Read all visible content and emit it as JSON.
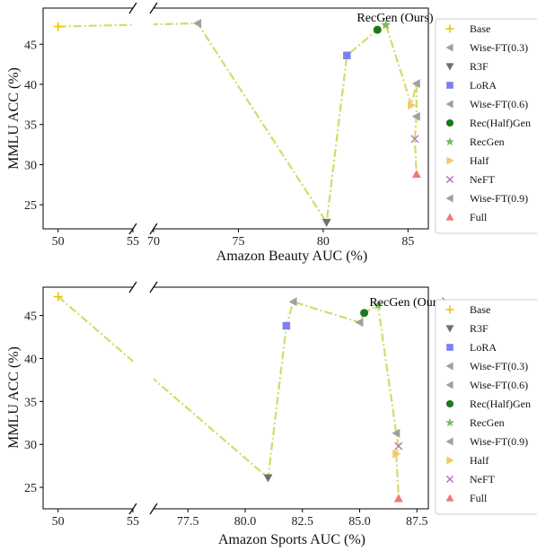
{
  "chart_data": [
    {
      "type": "line",
      "ylabel": "MMLU ACC (%)",
      "xlabel": "Amazon Beauty AUC (%)",
      "broken_x_axis": true,
      "left_xlim": [
        49,
        55
      ],
      "left_xticks": [
        "50",
        "55"
      ],
      "right_xlim": [
        70,
        86.2
      ],
      "right_xticks": [
        "70",
        "75",
        "80",
        "85"
      ],
      "ylim": [
        22,
        49.5
      ],
      "yticks": [
        "25",
        "30",
        "35",
        "40",
        "45"
      ],
      "annotation": "RecGen (Ours)",
      "line_color": "#d7d96a",
      "line_style": "dash-dot",
      "grid": false,
      "legend_position": "right",
      "series": [
        {
          "name": "Base",
          "marker": "plus",
          "color": "#f2c300",
          "x": 50.0,
          "y": 47.2
        },
        {
          "name": "Wise-FT(0.3)",
          "marker": "triangle-left",
          "color": "#a0a0a0",
          "x": 72.6,
          "y": 47.6
        },
        {
          "name": "R3F",
          "marker": "triangle-down",
          "color": "#707070",
          "x": 80.2,
          "y": 22.8
        },
        {
          "name": "LoRA",
          "marker": "square",
          "color": "#7f7fef",
          "x": 81.4,
          "y": 43.6
        },
        {
          "name": "Wise-FT(0.6)",
          "marker": "triangle-left",
          "color": "#a0a0a0",
          "x": 85.5,
          "y": 40.1
        },
        {
          "name": "Rec(Half)Gen",
          "marker": "circle",
          "color": "#1a7a1a",
          "x": 83.2,
          "y": 46.8
        },
        {
          "name": "RecGen",
          "marker": "star",
          "color": "#77bb66",
          "x": 83.7,
          "y": 47.4
        },
        {
          "name": "Half",
          "marker": "triangle-right",
          "color": "#f6c667",
          "x": 85.2,
          "y": 37.4
        },
        {
          "name": "NeFT",
          "marker": "x",
          "color": "#b070c0",
          "x": 85.4,
          "y": 33.2
        },
        {
          "name": "Wise-FT(0.9)",
          "marker": "triangle-left",
          "color": "#a0a0a0",
          "x": 85.5,
          "y": 36.0
        },
        {
          "name": "Full",
          "marker": "triangle-up",
          "color": "#f07878",
          "x": 85.5,
          "y": 28.8
        }
      ],
      "path_order": [
        "Base",
        "Wise-FT(0.3)",
        "R3F",
        "LoRA",
        "Rec(Half)Gen",
        "RecGen",
        "Half",
        "Wise-FT(0.6)",
        "Wise-FT(0.9)",
        "NeFT",
        "Full"
      ]
    },
    {
      "type": "line",
      "ylabel": "MMLU ACC (%)",
      "xlabel": "Amazon Sports AUC (%)",
      "broken_x_axis": true,
      "left_xlim": [
        49,
        55
      ],
      "left_xticks": [
        "50",
        "55"
      ],
      "right_xlim": [
        76,
        88
      ],
      "right_xticks": [
        "77.5",
        "80.0",
        "82.5",
        "85.0",
        "87.5"
      ],
      "ylim": [
        22.5,
        48.3
      ],
      "yticks": [
        "25",
        "30",
        "35",
        "40",
        "45"
      ],
      "annotation": "RecGen (Ours)",
      "line_color": "#d7d96a",
      "line_style": "dash-dot",
      "grid": false,
      "legend_position": "right",
      "series": [
        {
          "name": "Base",
          "marker": "plus",
          "color": "#f2c300",
          "x": 50.0,
          "y": 47.2
        },
        {
          "name": "R3F",
          "marker": "triangle-down",
          "color": "#707070",
          "x": 81.0,
          "y": 26.1
        },
        {
          "name": "LoRA",
          "marker": "square",
          "color": "#7f7fef",
          "x": 81.8,
          "y": 43.8
        },
        {
          "name": "Wise-FT(0.3)",
          "marker": "triangle-left",
          "color": "#a0a0a0",
          "x": 82.1,
          "y": 46.6
        },
        {
          "name": "Wise-FT(0.6)",
          "marker": "triangle-left",
          "color": "#a0a0a0",
          "x": 85.0,
          "y": 44.2
        },
        {
          "name": "Rec(Half)Gen",
          "marker": "circle",
          "color": "#1a7a1a",
          "x": 85.2,
          "y": 45.3
        },
        {
          "name": "RecGen",
          "marker": "star",
          "color": "#77bb66",
          "x": 85.8,
          "y": 46.2
        },
        {
          "name": "Wise-FT(0.9)",
          "marker": "triangle-left",
          "color": "#a0a0a0",
          "x": 86.6,
          "y": 31.3
        },
        {
          "name": "Half",
          "marker": "triangle-right",
          "color": "#f6c667",
          "x": 86.6,
          "y": 28.9
        },
        {
          "name": "NeFT",
          "marker": "x",
          "color": "#b070c0",
          "x": 86.7,
          "y": 29.8
        },
        {
          "name": "Full",
          "marker": "triangle-up",
          "color": "#f07878",
          "x": 86.7,
          "y": 23.7
        }
      ],
      "path_order": [
        "Base",
        "R3F",
        "LoRA",
        "Wise-FT(0.3)",
        "Wise-FT(0.6)",
        "Rec(Half)Gen",
        "RecGen",
        "Wise-FT(0.9)",
        "NeFT",
        "Half",
        "Full"
      ]
    }
  ]
}
